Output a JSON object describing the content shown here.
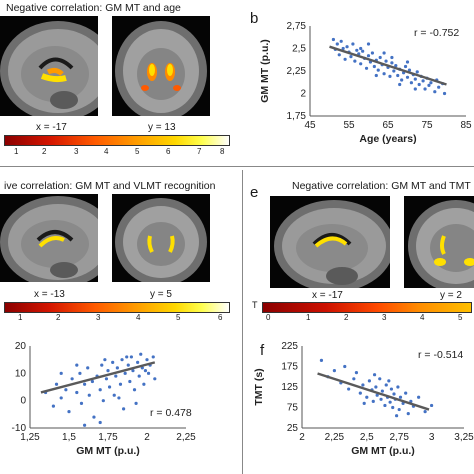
{
  "panel_top": {
    "title": "Negative correlation: GM MT and age",
    "coords": [
      "x = -17",
      "y = 13"
    ],
    "colorbar_ticks": [
      "1",
      "2",
      "3",
      "4",
      "5",
      "6",
      "7",
      "8"
    ]
  },
  "panel_b": {
    "letter": "b",
    "annotation": "r = -0.752",
    "chart_data": {
      "type": "scatter",
      "xlabel": "Age (years)",
      "ylabel": "GM MT (p.u.)",
      "xlim": [
        45,
        85
      ],
      "ylim": [
        1.75,
        2.75
      ],
      "xticks": [
        "45",
        "55",
        "65",
        "75",
        "85"
      ],
      "yticks": [
        "1,75",
        "2",
        "2,25",
        "2,5",
        "2,75"
      ],
      "trend": [
        [
          50,
          2.52
        ],
        [
          80,
          2.1
        ]
      ],
      "points": [
        [
          51,
          2.6
        ],
        [
          51.5,
          2.49
        ],
        [
          52,
          2.55
        ],
        [
          52.5,
          2.43
        ],
        [
          53,
          2.58
        ],
        [
          53.5,
          2.5
        ],
        [
          54,
          2.38
        ],
        [
          54.5,
          2.52
        ],
        [
          55,
          2.46
        ],
        [
          55.5,
          2.41
        ],
        [
          56,
          2.55
        ],
        [
          56.5,
          2.36
        ],
        [
          57,
          2.48
        ],
        [
          57.5,
          2.44
        ],
        [
          58,
          2.33
        ],
        [
          58.5,
          2.47
        ],
        [
          59,
          2.39
        ],
        [
          59.5,
          2.28
        ],
        [
          60,
          2.42
        ],
        [
          60.5,
          2.35
        ],
        [
          61,
          2.45
        ],
        [
          61.5,
          2.3
        ],
        [
          62,
          2.37
        ],
        [
          62.5,
          2.26
        ],
        [
          63,
          2.4
        ],
        [
          63.5,
          2.32
        ],
        [
          64,
          2.22
        ],
        [
          64.5,
          2.36
        ],
        [
          65,
          2.29
        ],
        [
          65.5,
          2.19
        ],
        [
          66,
          2.34
        ],
        [
          66.5,
          2.25
        ],
        [
          67,
          2.31
        ],
        [
          67.5,
          2.2
        ],
        [
          68,
          2.27
        ],
        [
          68.5,
          2.15
        ],
        [
          69,
          2.23
        ],
        [
          69.5,
          2.3
        ],
        [
          70,
          2.18
        ],
        [
          70.5,
          2.26
        ],
        [
          71,
          2.12
        ],
        [
          71.5,
          2.21
        ],
        [
          72,
          2.16
        ],
        [
          72.5,
          2.24
        ],
        [
          73,
          2.1
        ],
        [
          73.5,
          2.19
        ],
        [
          74,
          2.14
        ],
        [
          74.5,
          2.05
        ],
        [
          75,
          2.17
        ],
        [
          75.5,
          2.09
        ],
        [
          76,
          2.12
        ],
        [
          77,
          2.02
        ],
        [
          77.5,
          2.15
        ],
        [
          78,
          2.07
        ],
        [
          79,
          2.11
        ],
        [
          79.5,
          2.0
        ],
        [
          58,
          2.5
        ],
        [
          62,
          2.2
        ],
        [
          66,
          2.4
        ],
        [
          70,
          2.35
        ],
        [
          68,
          2.1
        ],
        [
          60,
          2.55
        ],
        [
          64,
          2.45
        ],
        [
          72,
          2.05
        ]
      ]
    }
  },
  "panel_c": {
    "title": "ive correlation: GM MT and VLMT recognition",
    "coords": [
      "x = -13",
      "y = 5"
    ],
    "colorbar_ticks": [
      "1",
      "2",
      "3",
      "4",
      "5",
      "6"
    ]
  },
  "panel_d": {
    "annotation": "r = 0.478",
    "chart_data": {
      "type": "scatter",
      "xlabel": "GM MT (p.u.)",
      "ylabel": "",
      "xlim": [
        1.25,
        2.25
      ],
      "ylim": [
        -10,
        20
      ],
      "xticks": [
        "1,25",
        "1,5",
        "1,75",
        "2",
        "2,25"
      ],
      "yticks": [
        "-10",
        "0",
        "10",
        "20"
      ],
      "trend": [
        [
          1.32,
          3
        ],
        [
          2.05,
          14
        ]
      ],
      "points": [
        [
          1.35,
          3
        ],
        [
          1.4,
          -2
        ],
        [
          1.42,
          6
        ],
        [
          1.45,
          1
        ],
        [
          1.48,
          4
        ],
        [
          1.5,
          -4
        ],
        [
          1.52,
          8
        ],
        [
          1.55,
          3
        ],
        [
          1.57,
          10
        ],
        [
          1.58,
          -1
        ],
        [
          1.6,
          6
        ],
        [
          1.62,
          12
        ],
        [
          1.63,
          2
        ],
        [
          1.65,
          7
        ],
        [
          1.66,
          -6
        ],
        [
          1.68,
          9
        ],
        [
          1.7,
          4
        ],
        [
          1.71,
          13
        ],
        [
          1.72,
          0
        ],
        [
          1.74,
          8
        ],
        [
          1.75,
          11
        ],
        [
          1.76,
          5
        ],
        [
          1.78,
          14
        ],
        [
          1.79,
          2
        ],
        [
          1.8,
          9
        ],
        [
          1.81,
          12
        ],
        [
          1.83,
          6
        ],
        [
          1.84,
          15
        ],
        [
          1.85,
          -3
        ],
        [
          1.86,
          10
        ],
        [
          1.88,
          13
        ],
        [
          1.89,
          7
        ],
        [
          1.9,
          16
        ],
        [
          1.91,
          11
        ],
        [
          1.92,
          4
        ],
        [
          1.94,
          14
        ],
        [
          1.95,
          9
        ],
        [
          1.96,
          17
        ],
        [
          1.97,
          12
        ],
        [
          1.98,
          6
        ],
        [
          2.0,
          15
        ],
        [
          2.01,
          10
        ],
        [
          2.02,
          13
        ],
        [
          2.04,
          16
        ],
        [
          2.05,
          8
        ],
        [
          1.7,
          -8
        ],
        [
          1.55,
          13
        ],
        [
          1.6,
          -9
        ],
        [
          1.82,
          1
        ],
        [
          1.93,
          -1
        ],
        [
          1.45,
          10
        ],
        [
          1.87,
          16
        ],
        [
          1.99,
          11
        ],
        [
          1.73,
          15
        ]
      ]
    }
  },
  "panel_e": {
    "letter": "e",
    "title": "Negative correlation: GM MT and TMT",
    "coords": [
      "x = -17",
      "y = 2"
    ],
    "colorbar_label": "T",
    "colorbar_ticks": [
      "0",
      "1",
      "2",
      "3",
      "4",
      "5"
    ]
  },
  "panel_f": {
    "letter": "f",
    "annotation": "r = -0.514",
    "chart_data": {
      "type": "scatter",
      "xlabel": "GM MT (p.u.)",
      "ylabel": "TMT (s)",
      "xlim": [
        2.0,
        3.25
      ],
      "ylim": [
        25,
        225
      ],
      "xticks": [
        "2",
        "2,25",
        "2,5",
        "2,75",
        "3",
        "3,25"
      ],
      "yticks": [
        "25",
        "75",
        "125",
        "175",
        "225"
      ],
      "trend": [
        [
          2.12,
          158
        ],
        [
          2.98,
          70
        ]
      ],
      "points": [
        [
          2.15,
          190
        ],
        [
          2.2,
          150
        ],
        [
          2.25,
          165
        ],
        [
          2.3,
          135
        ],
        [
          2.33,
          175
        ],
        [
          2.36,
          120
        ],
        [
          2.4,
          145
        ],
        [
          2.42,
          160
        ],
        [
          2.45,
          110
        ],
        [
          2.47,
          130
        ],
        [
          2.5,
          100
        ],
        [
          2.52,
          140
        ],
        [
          2.54,
          118
        ],
        [
          2.55,
          90
        ],
        [
          2.57,
          125
        ],
        [
          2.58,
          105
        ],
        [
          2.6,
          145
        ],
        [
          2.61,
          95
        ],
        [
          2.62,
          115
        ],
        [
          2.64,
          80
        ],
        [
          2.65,
          130
        ],
        [
          2.66,
          100
        ],
        [
          2.68,
          88
        ],
        [
          2.69,
          120
        ],
        [
          2.7,
          75
        ],
        [
          2.71,
          108
        ],
        [
          2.72,
          95
        ],
        [
          2.74,
          125
        ],
        [
          2.75,
          70
        ],
        [
          2.76,
          100
        ],
        [
          2.78,
          85
        ],
        [
          2.8,
          110
        ],
        [
          2.82,
          60
        ],
        [
          2.84,
          90
        ],
        [
          2.86,
          78
        ],
        [
          2.9,
          100
        ],
        [
          2.95,
          65
        ],
        [
          3.0,
          80
        ],
        [
          2.56,
          155
        ],
        [
          2.48,
          85
        ],
        [
          2.67,
          140
        ],
        [
          2.73,
          55
        ]
      ]
    }
  }
}
